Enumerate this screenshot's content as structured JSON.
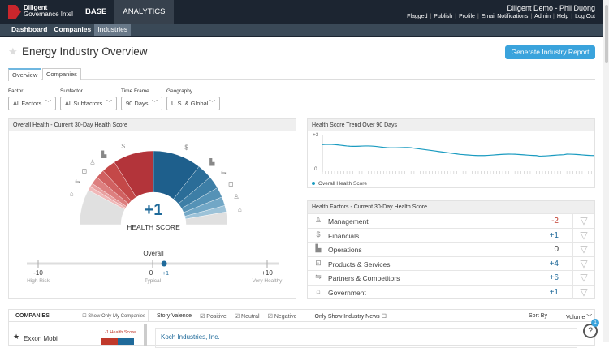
{
  "header": {
    "logo_line1": "Diligent",
    "logo_line2": "Governance Intel",
    "nav": [
      "BASE",
      "ANALYTICS"
    ],
    "user": "Diligent Demo - Phil Duong",
    "links": [
      "Flagged",
      "|",
      "Publish",
      "|",
      "Profile",
      "|",
      "Email Notifications",
      "|",
      "Admin",
      "|",
      "Help",
      "|",
      "Log Out"
    ]
  },
  "subnav": [
    "Dashboard",
    "Companies",
    "Industries"
  ],
  "page": {
    "title": "Energy Industry Overview",
    "generate_button": "Generate Industry Report",
    "tabs": [
      "Overview",
      "Companies"
    ]
  },
  "filters": [
    {
      "label": "Factor",
      "value": "All Factors"
    },
    {
      "label": "Subfactor",
      "value": "All Subfactors"
    },
    {
      "label": "Time Frame",
      "value": "90 Days"
    },
    {
      "label": "Geography",
      "value": "U.S. & Global"
    }
  ],
  "overall": {
    "title": "Overall Health - Current 30-Day Health Score",
    "score": "+1",
    "score_label": "HEALTH SCORE",
    "scale_title": "Overall",
    "min": "-10",
    "min_label": "High Risk",
    "mid": "0",
    "mid_label": "Typical",
    "max": "+10",
    "max_label": "Very Healthy",
    "marker": "+1",
    "marker_value": 1
  },
  "trend": {
    "title": "Health Score Trend Over 90 Days",
    "ymax": "+3",
    "ymin": "0",
    "legend": "Overall Health Score",
    "color": "#1a9bc0"
  },
  "factors": {
    "title": "Health Factors - Current 30-Day Health Score",
    "items": [
      {
        "icon": "person-icon",
        "glyph": "♙",
        "label": "Management",
        "value": "-2",
        "color": "#c0392b"
      },
      {
        "icon": "dollar-icon",
        "glyph": "$",
        "label": "Financials",
        "value": "+1",
        "color": "#1f6a9a"
      },
      {
        "icon": "factory-icon",
        "glyph": "▙",
        "label": "Operations",
        "value": "0",
        "color": "#333333"
      },
      {
        "icon": "products-icon",
        "glyph": "⊡",
        "label": "Products & Services",
        "value": "+4",
        "color": "#1f6a9a"
      },
      {
        "icon": "handshake-icon",
        "glyph": "⇋",
        "label": "Partners & Competitors",
        "value": "+6",
        "color": "#1f6a9a"
      },
      {
        "icon": "government-icon",
        "glyph": "⌂",
        "label": "Government",
        "value": "+1",
        "color": "#1f6a9a"
      }
    ]
  },
  "companies": {
    "title": "COMPANIES",
    "show_mine": "Show Only My Companies",
    "first": "Exxon Mobil",
    "first_score": "-1 Health Score"
  },
  "news": {
    "valence_label": "Story Valence",
    "positive": "Positive",
    "neutral": "Neutral",
    "negative": "Negative",
    "industry_only": "Only Show Industry News",
    "sort_by": "Sort By",
    "sort_value": "Volume",
    "first_item": "Koch Industries, Inc.",
    "help_badge": "1"
  }
}
